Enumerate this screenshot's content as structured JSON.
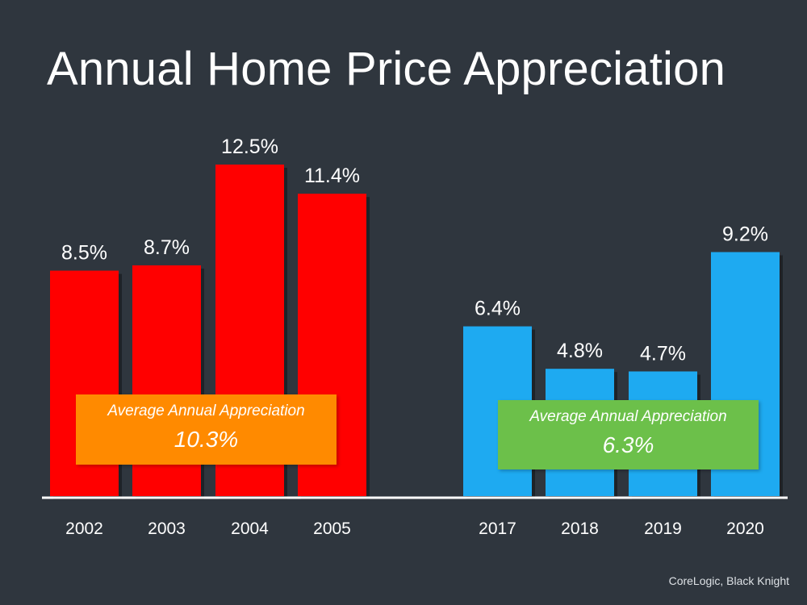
{
  "title": "Annual Home Price Appreciation",
  "source": "CoreLogic, Black Knight",
  "colors": {
    "background": "#2f363e",
    "early_bars": "#ff0000",
    "recent_bars": "#1eaaf1",
    "early_average_box": "#ff8a00",
    "recent_average_box": "#6cc04a",
    "text": "#ffffff"
  },
  "averages": {
    "early": {
      "label": "Average Annual Appreciation",
      "value": "10.3%"
    },
    "recent": {
      "label": "Average Annual Appreciation",
      "value": "6.3%"
    }
  },
  "chart_data": {
    "type": "bar",
    "title": "Annual Home Price Appreciation",
    "xlabel": "",
    "ylabel": "",
    "ylim": [
      0,
      12.5
    ],
    "grid": false,
    "categories": [
      "2002",
      "2003",
      "2004",
      "2005",
      "2017",
      "2018",
      "2019",
      "2020"
    ],
    "values": [
      8.5,
      8.7,
      12.5,
      11.4,
      6.4,
      4.8,
      4.7,
      9.2
    ],
    "data_labels": [
      "8.5%",
      "8.7%",
      "12.5%",
      "11.4%",
      "6.4%",
      "4.8%",
      "4.7%",
      "9.2%"
    ],
    "bar_colors": [
      "#ff0000",
      "#ff0000",
      "#ff0000",
      "#ff0000",
      "#1eaaf1",
      "#1eaaf1",
      "#1eaaf1",
      "#1eaaf1"
    ]
  }
}
